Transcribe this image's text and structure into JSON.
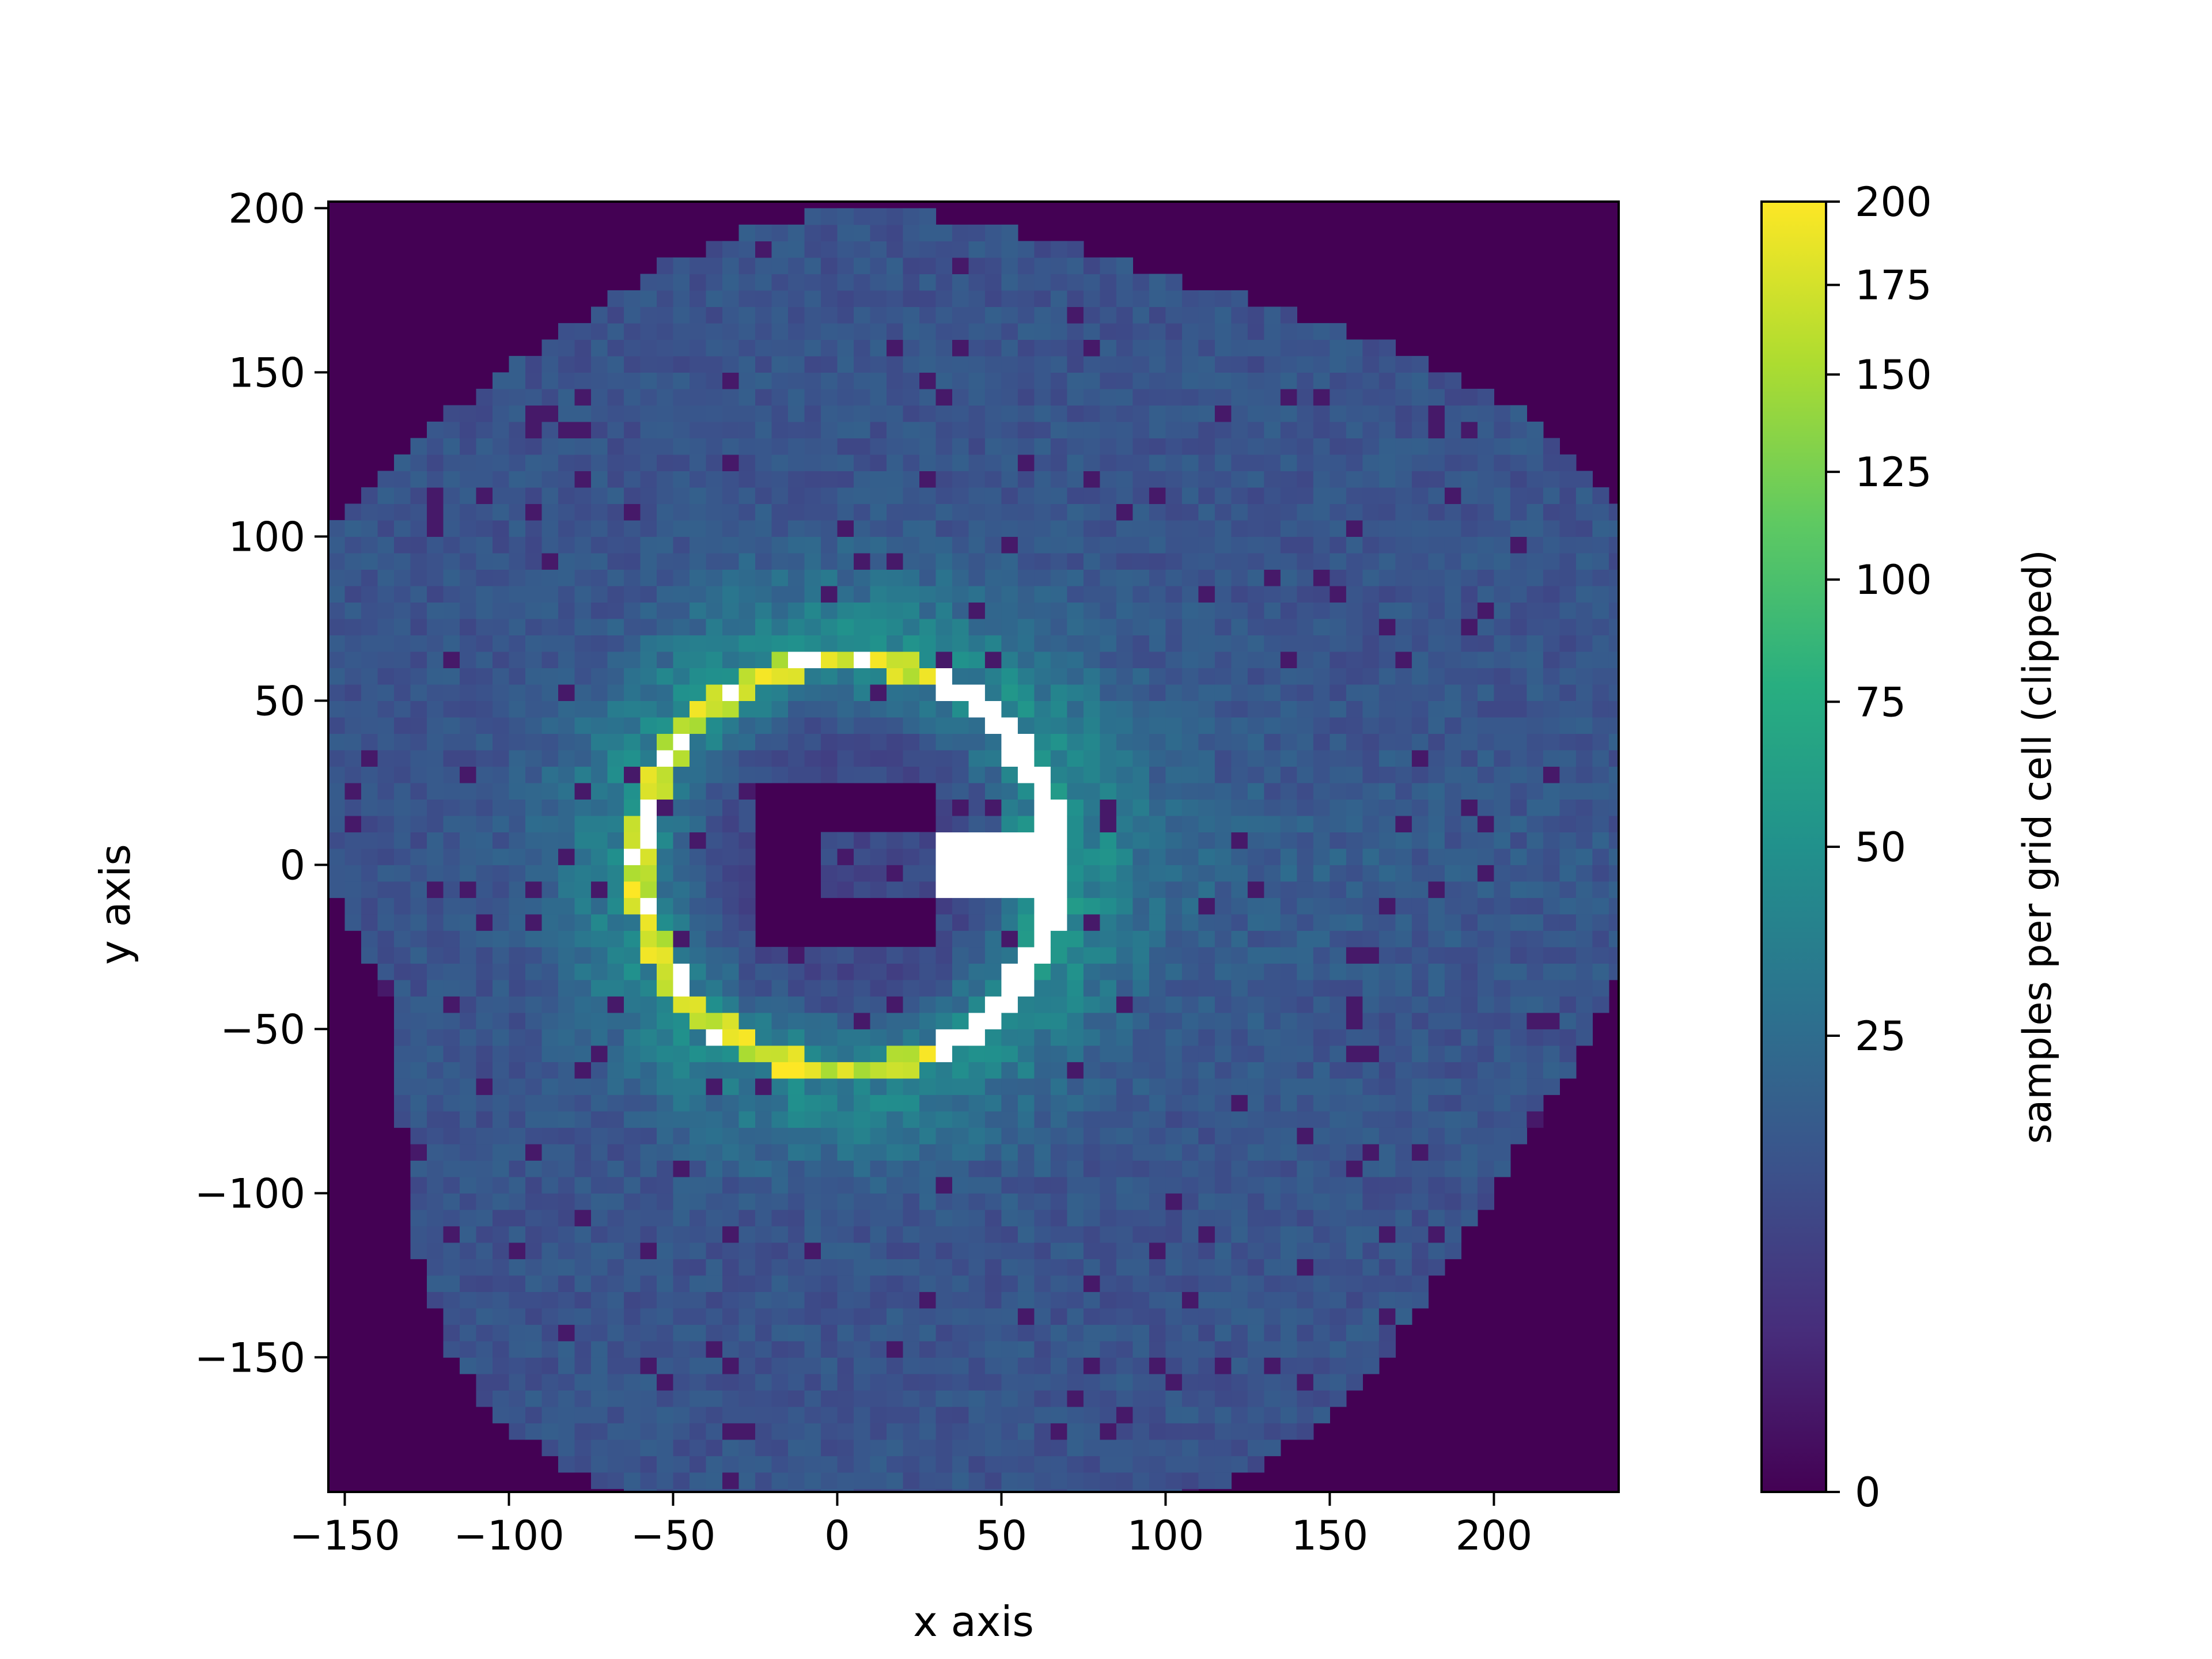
{
  "chart_data": {
    "type": "heatmap",
    "title": "",
    "xlabel": "x axis",
    "ylabel": "y axis",
    "xlim": [
      -155,
      238
    ],
    "ylim": [
      -191,
      202
    ],
    "xticks": [
      -150,
      -100,
      -50,
      0,
      50,
      100,
      150,
      200
    ],
    "yticks": [
      -150,
      -100,
      -50,
      0,
      50,
      100,
      150,
      200
    ],
    "xtick_labels": [
      "−150",
      "−100",
      "−50",
      "0",
      "50",
      "100",
      "150",
      "200"
    ],
    "ytick_labels": [
      "−150",
      "−100",
      "−50",
      "0",
      "50",
      "100",
      "150",
      "200"
    ],
    "grid": false,
    "colormap": "viridis",
    "over_color": "#ffffff",
    "cell_size": 5,
    "colorbar": {
      "label": "samples per grid cell (clipped)",
      "range": [
        0,
        200
      ],
      "scale": "sqrt",
      "ticks": [
        0,
        25,
        50,
        75,
        100,
        125,
        150,
        175,
        200
      ],
      "tick_labels": [
        "0",
        "25",
        "50",
        "75",
        "100",
        "125",
        "150",
        "175",
        "200"
      ]
    },
    "features": {
      "ring": {
        "center": [
          3,
          0
        ],
        "radius": 63,
        "value_over": "clipped (>200)"
      },
      "obstacle": {
        "shape": "C",
        "x_range": [
          -25,
          30
        ],
        "y_range": [
          -25,
          25
        ],
        "value": 0
      },
      "sampled_region_radius": 205
    }
  }
}
